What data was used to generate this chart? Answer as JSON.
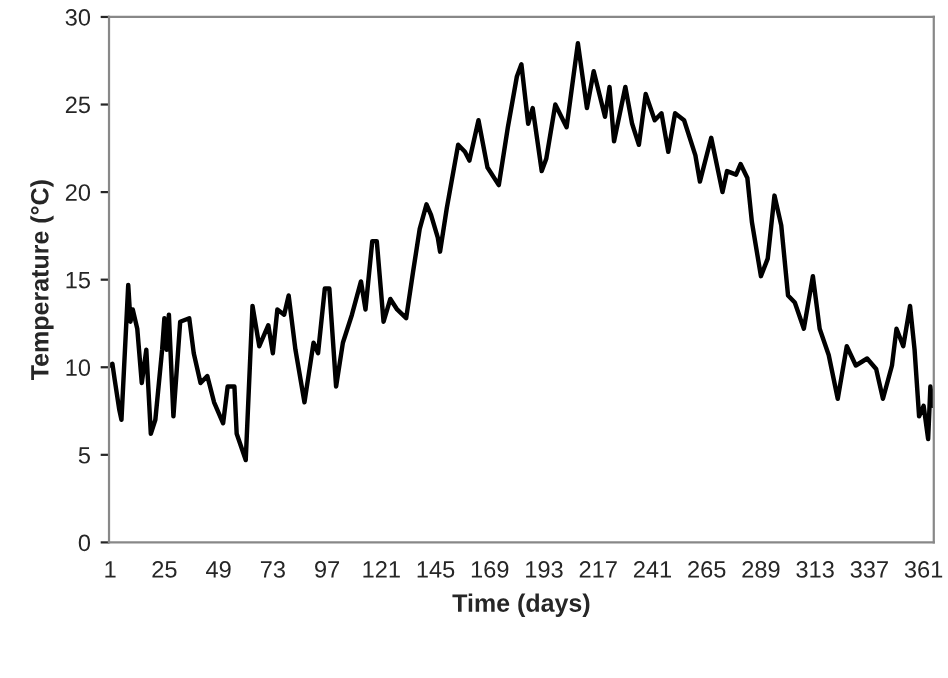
{
  "chart_data": {
    "type": "line",
    "xlabel": "Time (days)",
    "ylabel": "Temperature (°C)",
    "x": [
      1,
      2,
      3,
      5,
      6,
      9,
      10,
      11,
      13,
      15,
      17,
      19,
      21,
      24,
      25,
      26,
      27,
      29,
      32,
      36,
      38,
      41,
      44,
      47,
      51,
      53,
      56,
      57,
      61,
      64,
      67,
      71,
      73,
      75,
      78,
      80,
      83,
      87,
      91,
      93,
      96,
      98,
      101,
      104,
      108,
      112,
      114,
      117,
      119,
      122,
      125,
      128,
      132,
      135,
      138,
      141,
      143,
      146,
      147,
      150,
      155,
      158,
      160,
      164,
      168,
      173,
      177,
      181,
      183,
      186,
      188,
      192,
      194,
      198,
      203,
      208,
      212,
      215,
      220,
      222,
      224,
      229,
      232,
      235,
      238,
      242,
      245,
      248,
      251,
      255,
      260,
      262,
      267,
      272,
      274,
      278,
      280,
      283,
      285,
      289,
      292,
      295,
      298,
      301,
      304,
      308,
      312,
      315,
      319,
      323,
      327,
      331,
      336,
      340,
      343,
      347,
      349,
      352,
      355,
      357,
      359,
      361,
      363,
      364,
      365
    ],
    "series": [
      {
        "color": "#000000",
        "values": [
          10.1,
          10.2,
          9.3,
          7.6,
          7.0,
          14.7,
          12.6,
          13.3,
          12.2,
          9.1,
          11.0,
          6.2,
          7.0,
          11.0,
          12.8,
          11.0,
          13.0,
          7.2,
          12.6,
          12.8,
          10.8,
          9.1,
          9.5,
          8.0,
          6.8,
          8.9,
          8.9,
          6.2,
          4.7,
          13.5,
          11.2,
          12.4,
          10.8,
          13.3,
          13.0,
          14.1,
          11.0,
          8.0,
          11.4,
          10.8,
          14.5,
          14.5,
          8.9,
          11.4,
          13.0,
          14.9,
          13.3,
          17.2,
          17.2,
          12.6,
          13.9,
          13.3,
          12.8,
          15.4,
          17.9,
          19.3,
          18.7,
          17.4,
          16.6,
          19.1,
          22.7,
          22.3,
          21.8,
          24.1,
          21.4,
          20.4,
          23.7,
          26.6,
          27.3,
          23.9,
          24.8,
          21.2,
          21.9,
          25.0,
          23.7,
          28.5,
          24.8,
          26.9,
          24.3,
          26.0,
          22.9,
          26.0,
          23.9,
          22.7,
          25.6,
          24.1,
          24.5,
          22.3,
          24.5,
          24.1,
          22.1,
          20.6,
          23.1,
          20.0,
          21.2,
          21.0,
          21.6,
          20.8,
          18.3,
          15.2,
          16.2,
          19.8,
          18.1,
          14.1,
          13.7,
          12.2,
          15.2,
          12.2,
          10.7,
          8.2,
          11.2,
          10.1,
          10.5,
          9.9,
          8.2,
          10.1,
          12.2,
          11.2,
          13.5,
          11.0,
          7.2,
          7.8,
          5.9,
          8.9,
          7.8
        ]
      }
    ],
    "xlim": [
      0.5,
      365.5
    ],
    "xticks": [
      1,
      25,
      49,
      73,
      97,
      121,
      145,
      169,
      193,
      217,
      241,
      265,
      289,
      313,
      337,
      361
    ],
    "ylim": [
      0,
      30
    ],
    "yticks": [
      0,
      5,
      10,
      15,
      20,
      25,
      30
    ],
    "grid": false,
    "legend": false,
    "marker": "none",
    "line_style": "solid"
  }
}
